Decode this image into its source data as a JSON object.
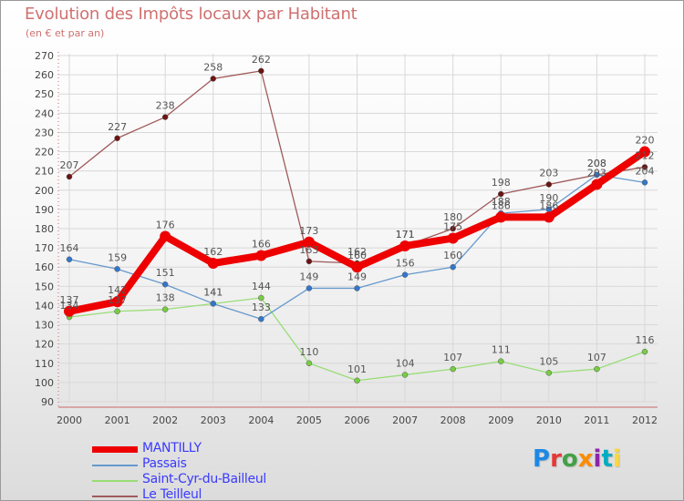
{
  "chart_data": {
    "type": "line",
    "title": "Evolution des Impôts locaux par Habitant",
    "subtitle": "(en € et par an)",
    "xlabel": "",
    "ylabel": "",
    "ylim": [
      90,
      270
    ],
    "yticks": [
      90,
      100,
      110,
      120,
      130,
      140,
      150,
      160,
      170,
      180,
      190,
      200,
      210,
      220,
      230,
      240,
      250,
      260,
      270
    ],
    "categories": [
      "2000",
      "2001",
      "2002",
      "2003",
      "2004",
      "2005",
      "2006",
      "2007",
      "2008",
      "2009",
      "2010",
      "2011",
      "2012"
    ],
    "series": [
      {
        "name": "Le Teilleul",
        "color": "#a05a5a",
        "marker": "#6b1414",
        "values": [
          207,
          227,
          238,
          258,
          262,
          163,
          162,
          171,
          180,
          198,
          203,
          208,
          212
        ]
      },
      {
        "name": "Saint-Cyr-du-Bailleul",
        "color": "#99dd77",
        "marker": "#77cc44",
        "values": [
          134,
          137,
          138,
          141,
          144,
          110,
          101,
          104,
          107,
          111,
          105,
          107,
          116
        ]
      },
      {
        "name": "Passais",
        "color": "#6699cc",
        "marker": "#3377cc",
        "values": [
          164,
          159,
          151,
          141,
          133,
          149,
          149,
          156,
          160,
          188,
          190,
          208,
          204
        ]
      },
      {
        "name": "MANTILLY",
        "color": "#ee0000",
        "marker": "#ee0000",
        "values": [
          137,
          142,
          176,
          162,
          166,
          173,
          160,
          171,
          175,
          186,
          186,
          203,
          220
        ]
      }
    ],
    "data_labels": [
      {
        "series": "Le Teilleul",
        "labels": [
          "207",
          "227",
          "238",
          "258",
          "262",
          "163",
          "162",
          "171",
          "180",
          "198",
          "203",
          "208",
          "212"
        ]
      },
      {
        "series": "Saint-Cyr-du-Bailleul",
        "labels": [
          "134",
          "137",
          "138",
          "141",
          "144",
          "110",
          "101",
          "104",
          "107",
          "111",
          "105",
          "107",
          "116"
        ]
      },
      {
        "series": "Passais",
        "labels": [
          "164",
          "159",
          "151",
          "141",
          "133",
          "149",
          "149",
          "156",
          "160",
          "188",
          "190",
          "208",
          "204"
        ]
      },
      {
        "series": "MANTILLY",
        "labels": [
          "137",
          "142",
          "176",
          "162",
          "166",
          "173",
          "160",
          "171",
          "175",
          "186",
          "186",
          "203",
          "220"
        ]
      }
    ],
    "legend_position": "bottom-left"
  },
  "legend": {
    "items": [
      {
        "label": "MANTILLY",
        "color": "#ee0000"
      },
      {
        "label": "Passais",
        "color": "#6699cc"
      },
      {
        "label": "Saint-Cyr-du-Bailleul",
        "color": "#99dd77"
      },
      {
        "label": "Le Teilleul",
        "color": "#a05a5a"
      }
    ]
  },
  "logo": {
    "text": "Proxiti",
    "letters": [
      "P",
      "r",
      "o",
      "x",
      "i",
      "t",
      "i"
    ],
    "colors": [
      "#1e88e5",
      "#e53935",
      "#43a047",
      "#fb8c00",
      "#8e24aa",
      "#00acc1",
      "#fdd835"
    ]
  }
}
